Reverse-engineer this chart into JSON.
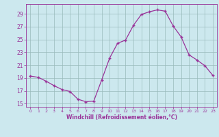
{
  "x": [
    0,
    1,
    2,
    3,
    4,
    5,
    6,
    7,
    8,
    9,
    10,
    11,
    12,
    13,
    14,
    15,
    16,
    17,
    18,
    19,
    20,
    21,
    22,
    23
  ],
  "y": [
    19.3,
    19.1,
    18.5,
    17.8,
    17.2,
    16.9,
    15.7,
    15.3,
    15.4,
    18.7,
    22.1,
    24.4,
    24.9,
    27.2,
    28.9,
    29.3,
    29.6,
    29.4,
    27.1,
    25.4,
    22.6,
    21.8,
    20.9,
    19.4
  ],
  "line_color": "#993399",
  "marker": "+",
  "marker_size": 3,
  "bg_color": "#cce8ee",
  "grid_color": "#99bbbb",
  "xlabel": "Windchill (Refroidissement éolien,°C)",
  "ylim": [
    14.5,
    30.5
  ],
  "yticks": [
    15,
    17,
    19,
    21,
    23,
    25,
    27,
    29
  ],
  "xticks": [
    0,
    1,
    2,
    3,
    4,
    5,
    6,
    7,
    8,
    9,
    10,
    11,
    12,
    13,
    14,
    15,
    16,
    17,
    18,
    19,
    20,
    21,
    22,
    23
  ],
  "axis_color": "#993399",
  "tick_color": "#993399"
}
